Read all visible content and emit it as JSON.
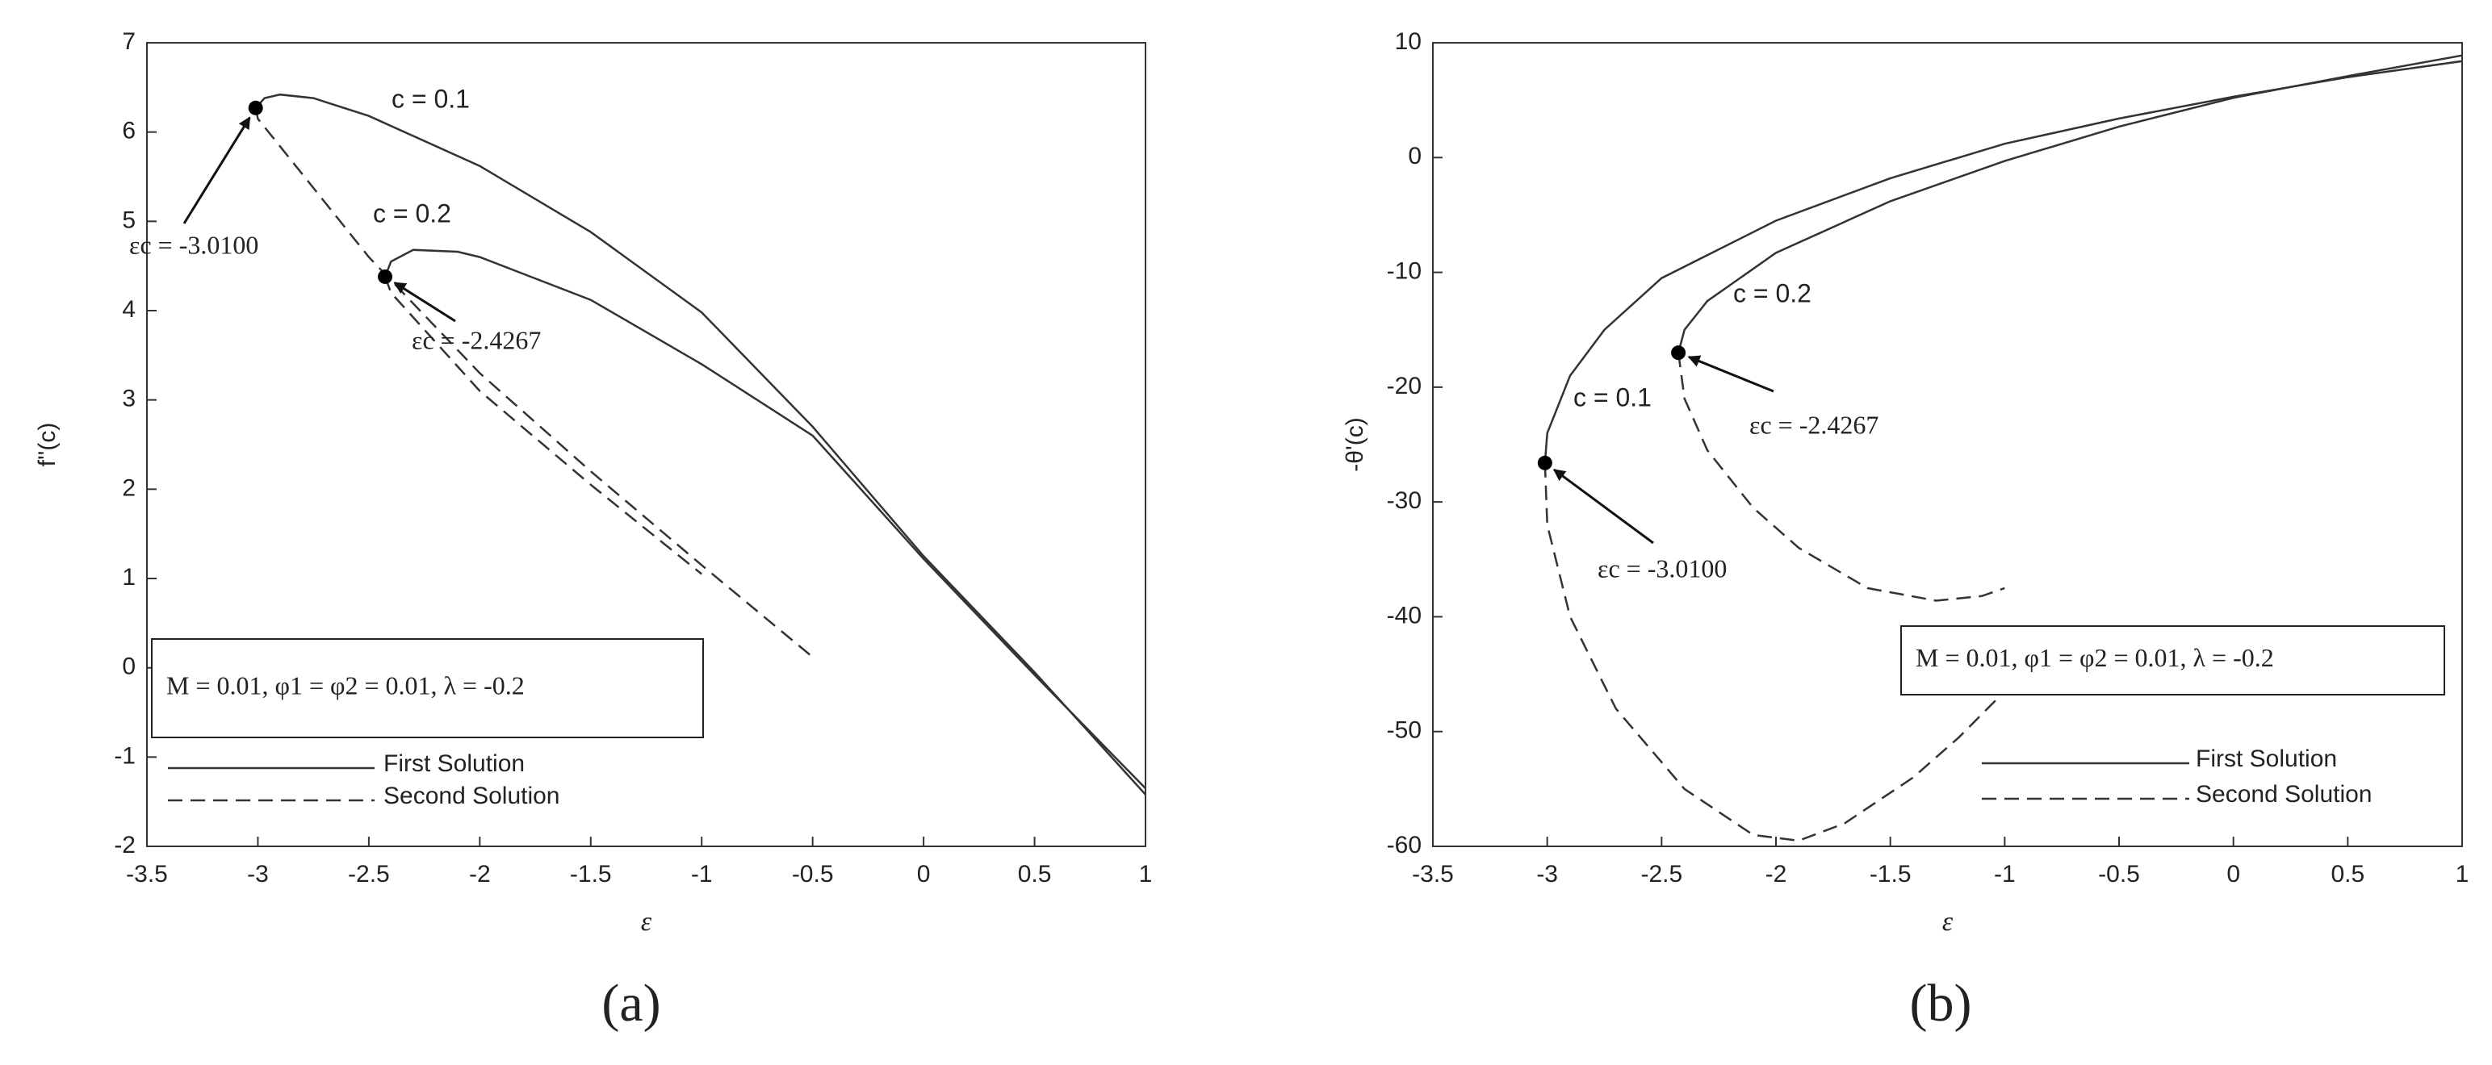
{
  "chart_data": [
    {
      "type": "line",
      "panel": "(a)",
      "xlabel": "ε",
      "ylabel": "f''(c)",
      "xlim": [
        -3.5,
        1
      ],
      "xticks": [
        -3.5,
        -3,
        -2.5,
        -2,
        -1.5,
        -1,
        -0.5,
        0,
        0.5,
        1
      ],
      "ylim": [
        -2,
        7
      ],
      "yticks": [
        -2,
        -1,
        0,
        1,
        2,
        3,
        4,
        5,
        6,
        7
      ],
      "parameters": "M = 0.01, φ1 = φ2 = 0.01, λ = -0.2",
      "annotations": [
        {
          "text": "c = 0.1"
        },
        {
          "text": "c = 0.2"
        }
      ],
      "critical_points": [
        {
          "x": -3.01,
          "y": 6.27,
          "label": "εc = -3.0100"
        },
        {
          "x": -2.4267,
          "y": 4.38,
          "label": "εc = -2.4267"
        }
      ],
      "series": [
        {
          "name": "First Solution",
          "style": "solid",
          "color": "#333333",
          "curves": [
            {
              "x": [
                -3.01,
                -2.97,
                -2.9,
                -2.75,
                -2.5,
                -2,
                -1.5,
                -1,
                -0.5,
                0,
                0.5,
                1
              ],
              "values": [
                6.27,
                6.38,
                6.42,
                6.38,
                6.18,
                5.62,
                4.88,
                3.98,
                2.7,
                1.25,
                -0.05,
                -1.42
              ]
            },
            {
              "x": [
                -2.4267,
                -2.4,
                -2.3,
                -2.1,
                -2,
                -1.5,
                -1,
                -0.5,
                0,
                0.5,
                1
              ],
              "values": [
                4.38,
                4.55,
                4.68,
                4.66,
                4.6,
                4.12,
                3.4,
                2.6,
                1.22,
                -0.08,
                -1.35
              ]
            }
          ]
        },
        {
          "name": "Second Solution",
          "style": "dashed",
          "color": "#333333",
          "curves": [
            {
              "x": [
                -3.01,
                -3,
                -2.5,
                -2,
                -1.5,
                -1,
                -0.5
              ],
              "values": [
                6.27,
                6.15,
                4.6,
                3.3,
                2.2,
                1.15,
                0.12
              ]
            },
            {
              "x": [
                -2.4267,
                -2.4,
                -2,
                -1.5,
                -1
              ],
              "values": [
                4.38,
                4.2,
                3.1,
                2.05,
                1.05
              ]
            }
          ]
        }
      ]
    },
    {
      "type": "line",
      "panel": "(b)",
      "xlabel": "ε",
      "ylabel": "-θ'(c)",
      "xlim": [
        -3.5,
        1
      ],
      "xticks": [
        -3.5,
        -3,
        -2.5,
        -2,
        -1.5,
        -1,
        -0.5,
        0,
        0.5,
        1
      ],
      "ylim": [
        -60,
        10
      ],
      "yticks": [
        -60,
        -50,
        -40,
        -30,
        -20,
        -10,
        0,
        10
      ],
      "parameters": "M = 0.01, φ1 = φ2 = 0.01, λ = -0.2",
      "annotations": [
        {
          "text": "c = 0.1"
        },
        {
          "text": "c = 0.2"
        }
      ],
      "critical_points": [
        {
          "x": -3.01,
          "y": -26.6,
          "label": "εc = -3.0100"
        },
        {
          "x": -2.4267,
          "y": -17,
          "label": "εc = -2.4267"
        }
      ],
      "series": [
        {
          "name": "First Solution",
          "style": "solid",
          "color": "#333333",
          "curves": [
            {
              "x": [
                -3.01,
                -3,
                -2.9,
                -2.75,
                -2.5,
                -2,
                -1.5,
                -1,
                -0.5,
                0,
                0.5,
                1
              ],
              "values": [
                -26.6,
                -24,
                -19,
                -15,
                -10.5,
                -5.5,
                -1.8,
                1.2,
                3.4,
                5.3,
                7,
                8.4
              ]
            },
            {
              "x": [
                -2.4267,
                -2.4,
                -2.3,
                -2,
                -1.5,
                -1,
                -0.5,
                0,
                0.5,
                1
              ],
              "values": [
                -17,
                -15,
                -12.5,
                -8.3,
                -3.8,
                -0.3,
                2.7,
                5.2,
                7.1,
                8.9
              ]
            }
          ]
        },
        {
          "name": "Second Solution",
          "style": "dashed",
          "color": "#333333",
          "curves": [
            {
              "x": [
                -3.01,
                -3,
                -2.9,
                -2.7,
                -2.4,
                -2.1,
                -1.9,
                -1.7,
                -1.4,
                -1.2,
                -1
              ],
              "values": [
                -26.6,
                -32,
                -40,
                -48,
                -55,
                -59,
                -59.5,
                -58,
                -54,
                -50.5,
                -46.5
              ]
            },
            {
              "x": [
                -2.4267,
                -2.4,
                -2.3,
                -2.1,
                -1.9,
                -1.6,
                -1.3,
                -1.1,
                -1
              ],
              "values": [
                -17,
                -21,
                -25.5,
                -30.5,
                -34,
                -37.5,
                -38.6,
                -38.2,
                -37.5
              ]
            }
          ]
        }
      ]
    }
  ]
}
